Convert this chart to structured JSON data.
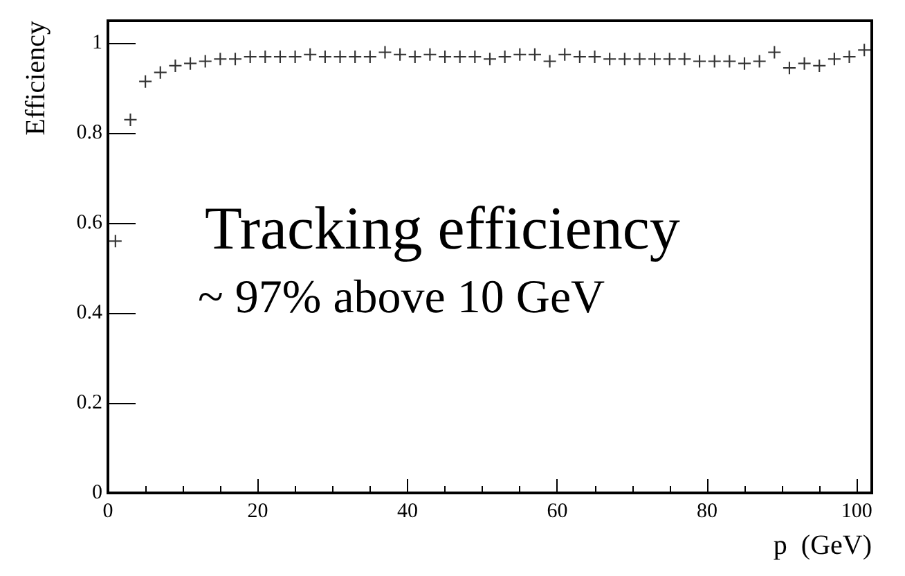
{
  "chart_data": {
    "type": "scatter",
    "xlabel": "p  (GeV)",
    "ylabel": "Efficiency",
    "annotations": [
      "Tracking efficiency",
      "~ 97% above 10 GeV"
    ],
    "x": [
      1,
      3,
      5,
      7,
      9,
      11,
      13,
      15,
      17,
      19,
      21,
      23,
      25,
      27,
      29,
      31,
      33,
      35,
      37,
      39,
      41,
      43,
      45,
      47,
      49,
      51,
      53,
      55,
      57,
      59,
      61,
      63,
      65,
      67,
      69,
      71,
      73,
      75,
      77,
      79,
      81,
      83,
      85,
      87,
      89,
      91,
      93,
      95,
      97,
      99,
      101
    ],
    "series": [
      {
        "color": "#000000",
        "values": [
          0.56,
          0.83,
          0.915,
          0.935,
          0.95,
          0.955,
          0.96,
          0.965,
          0.965,
          0.97,
          0.97,
          0.97,
          0.97,
          0.975,
          0.97,
          0.97,
          0.97,
          0.97,
          0.98,
          0.975,
          0.97,
          0.975,
          0.97,
          0.97,
          0.97,
          0.965,
          0.97,
          0.975,
          0.975,
          0.96,
          0.975,
          0.97,
          0.97,
          0.965,
          0.965,
          0.965,
          0.965,
          0.965,
          0.965,
          0.96,
          0.96,
          0.96,
          0.955,
          0.96,
          0.98,
          0.945,
          0.955,
          0.95,
          0.965,
          0.97,
          0.985
        ]
      }
    ],
    "xlim": [
      0,
      102
    ],
    "ylim": [
      0,
      1.05
    ],
    "xticks": [
      0,
      20,
      40,
      60,
      80,
      100
    ],
    "yticks": [
      0,
      0.2,
      0.4,
      0.6,
      0.8,
      1
    ],
    "marker": "cross"
  }
}
